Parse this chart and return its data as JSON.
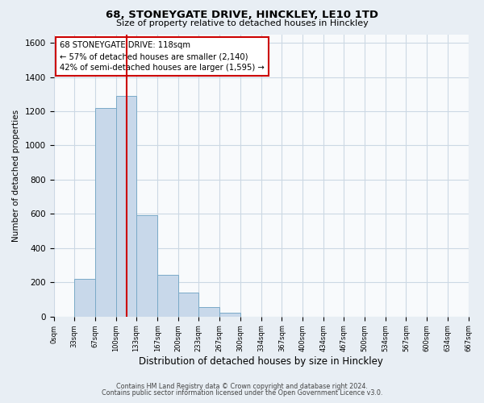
{
  "title": "68, STONEYGATE DRIVE, HINCKLEY, LE10 1TD",
  "subtitle": "Size of property relative to detached houses in Hinckley",
  "xlabel": "Distribution of detached houses by size in Hinckley",
  "ylabel": "Number of detached properties",
  "footnote1": "Contains HM Land Registry data © Crown copyright and database right 2024.",
  "footnote2": "Contains public sector information licensed under the Open Government Licence v3.0.",
  "bin_edges": [
    0,
    33,
    67,
    100,
    133,
    167,
    200,
    233,
    267,
    300,
    334,
    367,
    400,
    434,
    467,
    500,
    534,
    567,
    600,
    634,
    667
  ],
  "bar_heights": [
    0,
    220,
    1220,
    1290,
    590,
    245,
    140,
    55,
    22,
    0,
    0,
    0,
    0,
    0,
    0,
    0,
    0,
    0,
    0,
    0
  ],
  "bar_color": "#c8d8ea",
  "bar_edge_color": "#7aaac8",
  "vline_x": 118,
  "vline_color": "#cc0000",
  "annotation_box_text": "68 STONEYGATE DRIVE: 118sqm\n← 57% of detached houses are smaller (2,140)\n42% of semi-detached houses are larger (1,595) →",
  "annotation_box_color": "#cc0000",
  "ylim": [
    0,
    1650
  ],
  "yticks": [
    0,
    200,
    400,
    600,
    800,
    1000,
    1200,
    1400,
    1600
  ],
  "xtick_labels": [
    "0sqm",
    "33sqm",
    "67sqm",
    "100sqm",
    "133sqm",
    "167sqm",
    "200sqm",
    "233sqm",
    "267sqm",
    "300sqm",
    "334sqm",
    "367sqm",
    "400sqm",
    "434sqm",
    "467sqm",
    "500sqm",
    "534sqm",
    "567sqm",
    "600sqm",
    "634sqm",
    "667sqm"
  ],
  "grid_color": "#ccd8e4",
  "bg_color": "#e8eef4",
  "plot_bg_color": "#f8fafc"
}
